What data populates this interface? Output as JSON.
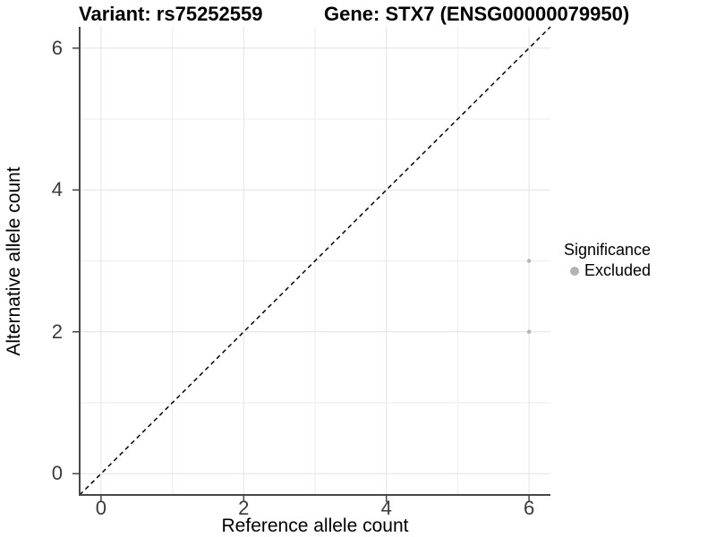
{
  "header": {
    "variant_title": "Variant: rs75252559",
    "gene_title": "Gene: STX7 (ENSG00000079950)"
  },
  "chart_data": {
    "type": "scatter",
    "title_left": "Variant: rs75252559",
    "title_right": "Gene: STX7 (ENSG00000079950)",
    "xlabel": "Reference allele count",
    "ylabel": "Alternative allele count",
    "xlim": [
      -0.3,
      6.3
    ],
    "ylim": [
      -0.3,
      6.3
    ],
    "x_ticks": [
      0,
      2,
      4,
      6
    ],
    "y_ticks": [
      0,
      2,
      4,
      6
    ],
    "x_minor_grid": [
      1,
      3,
      5
    ],
    "y_minor_grid": [
      1,
      3,
      5
    ],
    "grid": "on",
    "reference_line": {
      "kind": "identity-diagonal",
      "style": "dashed",
      "from": [
        -0.3,
        -0.3
      ],
      "to": [
        6.3,
        6.3
      ],
      "color": "#000000"
    },
    "series": [
      {
        "name": "Excluded",
        "color": "#b3b3b3",
        "points": [
          {
            "x": 6,
            "y": 3
          },
          {
            "x": 6,
            "y": 2
          }
        ]
      }
    ],
    "legend": {
      "title": "Significance",
      "position": "right",
      "items": [
        {
          "label": "Excluded",
          "color": "#b3b3b3",
          "marker": "dot"
        }
      ]
    }
  },
  "colors": {
    "background": "#ffffff",
    "grid_major": "#e2e2e2",
    "grid_minor": "#eeeeee",
    "axis_line": "#474747",
    "tick_mark": "#474747",
    "tick_label": "#3a3a3a",
    "point": "#b3b3b3",
    "reference_line": "#000000",
    "title_text": "#000000"
  }
}
